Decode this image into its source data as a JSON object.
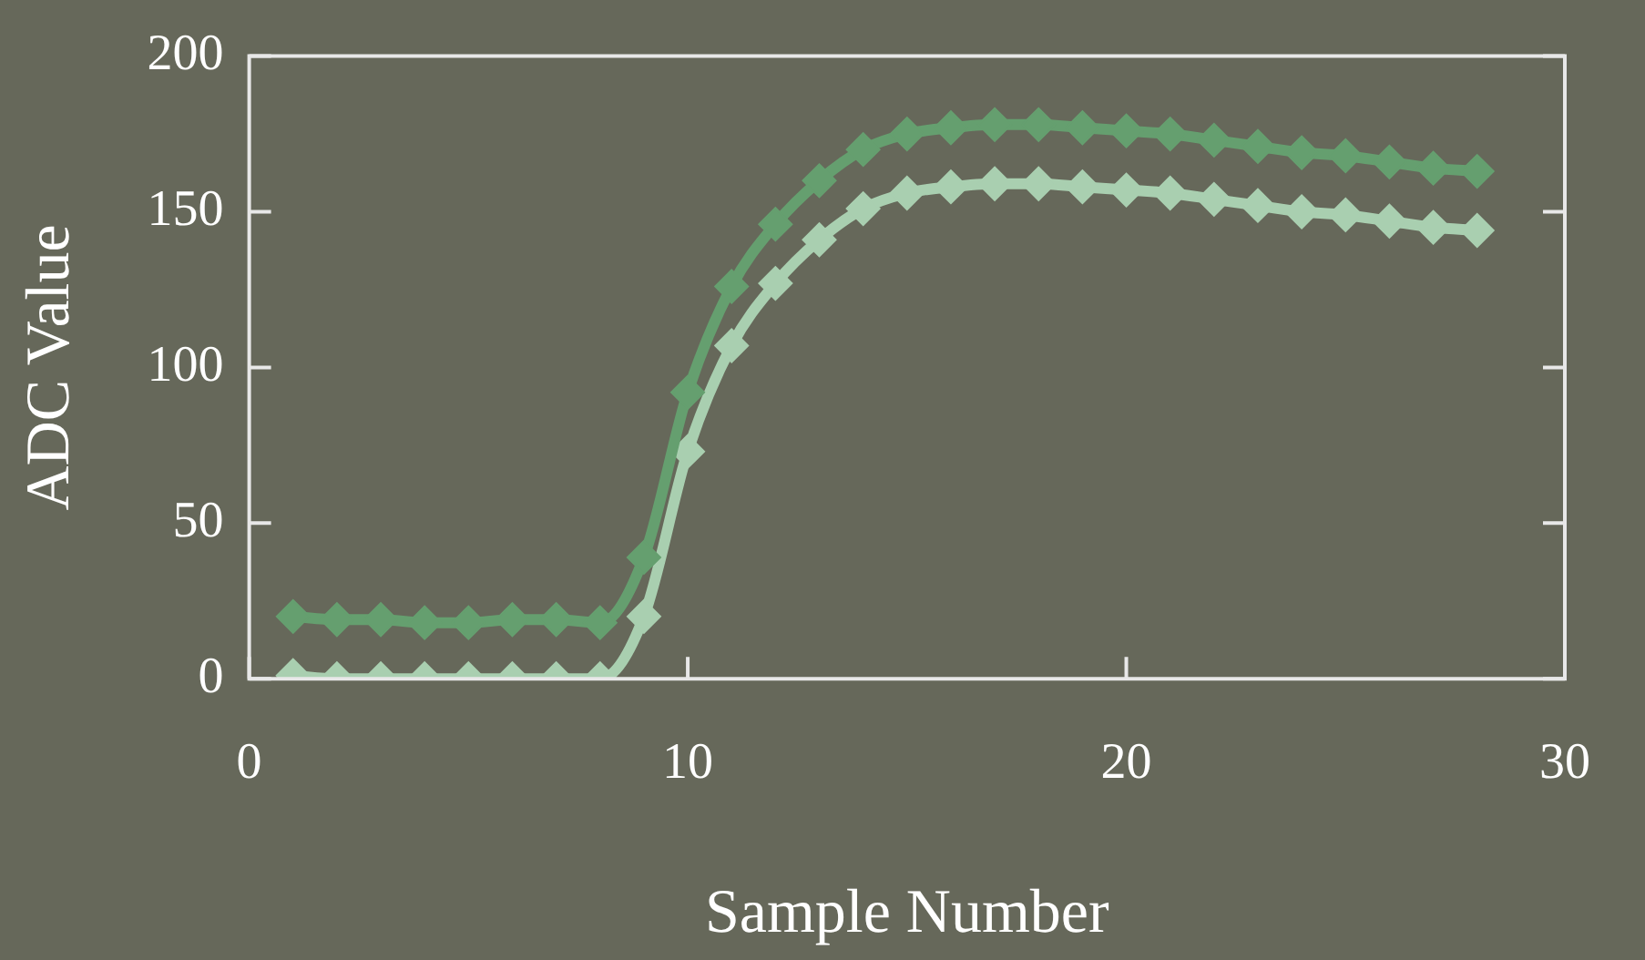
{
  "chart_data": {
    "type": "line",
    "xlabel": "Sample Number",
    "ylabel": "ADC Value",
    "x": [
      1,
      2,
      3,
      4,
      5,
      6,
      7,
      8,
      9,
      10,
      11,
      12,
      13,
      14,
      15,
      16,
      17,
      18,
      19,
      20,
      21,
      22,
      23,
      24,
      25,
      26,
      27,
      28
    ],
    "series": [
      {
        "color": "#659f6f",
        "values": [
          20,
          19,
          19,
          18,
          18,
          19,
          19,
          18,
          39,
          92,
          126,
          146,
          160,
          170,
          175,
          177,
          178,
          178,
          177,
          176,
          175,
          173,
          171,
          169,
          168,
          166,
          164,
          163
        ]
      },
      {
        "color": "#a9cfb0",
        "values": [
          1,
          0,
          0,
          0,
          0,
          0,
          0,
          0,
          20,
          73,
          107,
          127,
          141,
          151,
          156,
          158,
          159,
          159,
          158,
          157,
          156,
          154,
          152,
          150,
          149,
          147,
          145,
          144
        ]
      }
    ],
    "xlim": [
      0,
      30
    ],
    "xticks": [
      0,
      10,
      20,
      30
    ],
    "ylim": [
      0,
      200
    ],
    "yticks": [
      0,
      50,
      100,
      150,
      200
    ],
    "grid": false,
    "legend": false,
    "marker": "diamond",
    "line_style": "solid"
  }
}
